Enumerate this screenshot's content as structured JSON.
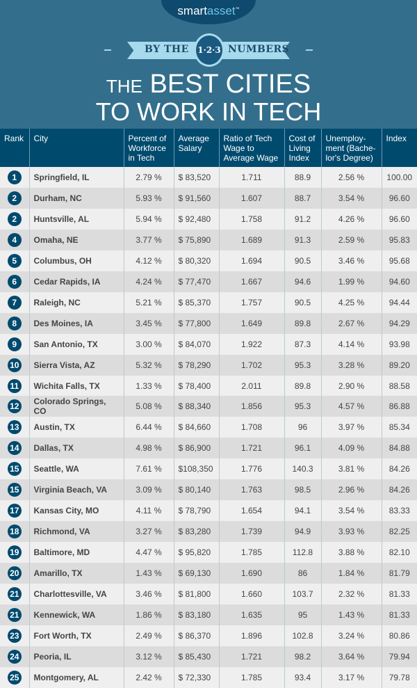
{
  "header": {
    "logo_a": "smart",
    "logo_b": "asset",
    "logo_tm": "™",
    "ribbon_left": "BY THE",
    "ribbon_badge": "1·2·3",
    "ribbon_right": "NUMBERS",
    "title_small": "THE",
    "title_line1": "BEST CITIES",
    "title_line2": "TO WORK IN TECH"
  },
  "table": {
    "columns": [
      "Rank",
      "City",
      "Percent of Workforce in Tech",
      "Average Salary",
      "Ratio of Tech Wage to Average Wage",
      "Cost of Living Index",
      "Unemploy-ment (Bache-lor's Degree)",
      "Index"
    ],
    "rows": [
      [
        "1",
        "Springfield, IL",
        "2.79 %",
        "$ 83,520",
        "1.711",
        "88.9",
        "2.56 %",
        "100.00"
      ],
      [
        "2",
        "Durham, NC",
        "5.93 %",
        "$ 91,560",
        "1.607",
        "88.7",
        "3.54 %",
        "96.60"
      ],
      [
        "2",
        "Huntsville, AL",
        "5.94 %",
        "$ 92,480",
        "1.758",
        "91.2",
        "4.26 %",
        "96.60"
      ],
      [
        "4",
        "Omaha, NE",
        "3.77 %",
        "$ 75,890",
        "1.689",
        "91.3",
        "2.59 %",
        "95.83"
      ],
      [
        "5",
        "Columbus, OH",
        "4.12 %",
        "$ 80,320",
        "1.694",
        "90.5",
        "3.46 %",
        "95.68"
      ],
      [
        "6",
        "Cedar Rapids, IA",
        "4.24 %",
        "$ 77,470",
        "1.667",
        "94.6",
        "1.99 %",
        "94.60"
      ],
      [
        "7",
        "Raleigh, NC",
        "5.21 %",
        "$ 85,370",
        "1.757",
        "90.5",
        "4.25 %",
        "94.44"
      ],
      [
        "8",
        "Des Moines, IA",
        "3.45 %",
        "$ 77,800",
        "1.649",
        "89.8",
        "2.67 %",
        "94.29"
      ],
      [
        "9",
        "San Antonio, TX",
        "3.00 %",
        "$ 84,070",
        "1.922",
        "87.3",
        "4.14 %",
        "93.98"
      ],
      [
        "10",
        "Sierra Vista, AZ",
        "5.32 %",
        "$ 78,290",
        "1.702",
        "95.3",
        "3.28 %",
        "89.20"
      ],
      [
        "11",
        "Wichita Falls, TX",
        "1.33 %",
        "$ 78,400",
        "2.011",
        "89.8",
        "2.90 %",
        "88.58"
      ],
      [
        "12",
        "Colorado Springs, CO",
        "5.08 %",
        "$ 88,340",
        "1.856",
        "95.3",
        "4.57 %",
        "86.88"
      ],
      [
        "13",
        "Austin, TX",
        "6.44 %",
        "$ 84,660",
        "1.708",
        "96",
        "3.97 %",
        "85.34"
      ],
      [
        "14",
        "Dallas, TX",
        "4.98 %",
        "$ 86,900",
        "1.721",
        "96.1",
        "4.09 %",
        "84.88"
      ],
      [
        "15",
        "Seattle, WA",
        "7.61 %",
        "$108,350",
        "1.776",
        "140.3",
        "3.81 %",
        "84.26"
      ],
      [
        "15",
        "Virginia Beach, VA",
        "3.09 %",
        "$ 80,140",
        "1.763",
        "98.5",
        "2.96 %",
        "84.26"
      ],
      [
        "17",
        "Kansas City, MO",
        "4.11 %",
        "$ 78,790",
        "1.654",
        "94.1",
        "3.54 %",
        "83.33"
      ],
      [
        "18",
        "Richmond, VA",
        "3.27 %",
        "$ 83,280",
        "1.739",
        "94.9",
        "3.93 %",
        "82.25"
      ],
      [
        "19",
        "Baltimore, MD",
        "4.47 %",
        "$ 95,820",
        "1.785",
        "112.8",
        "3.88 %",
        "82.10"
      ],
      [
        "20",
        "Amarillo, TX",
        "1.43 %",
        "$ 69,130",
        "1.690",
        "86",
        "1.84 %",
        "81.79"
      ],
      [
        "21",
        "Charlottesville, VA",
        "3.46 %",
        "$ 81,800",
        "1.660",
        "103.7",
        "2.32 %",
        "81.33"
      ],
      [
        "21",
        "Kennewick, WA",
        "1.86 %",
        "$ 83,180",
        "1.635",
        "95",
        "1.43 %",
        "81.33"
      ],
      [
        "23",
        "Fort Worth, TX",
        "2.49 %",
        "$ 86,370",
        "1.896",
        "102.8",
        "3.24 %",
        "80.86"
      ],
      [
        "24",
        "Peoria, IL",
        "3.12 %",
        "$ 85,430",
        "1.721",
        "98.2",
        "3.64 %",
        "79.94"
      ],
      [
        "25",
        "Montgomery, AL",
        "2.42 %",
        "$ 72,330",
        "1.785",
        "93.4",
        "3.17 %",
        "79.78"
      ]
    ]
  }
}
